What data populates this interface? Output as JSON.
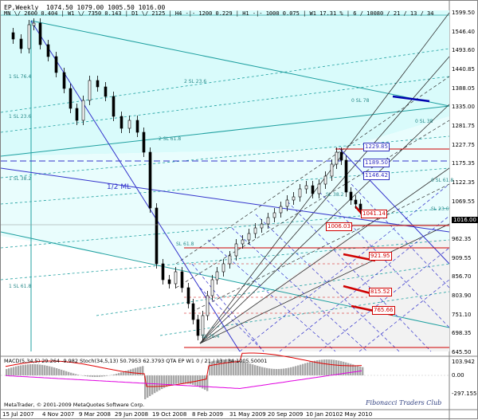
{
  "header": {
    "symbol": "EP,Weekly",
    "ohlc": "1074.50  1079.00  1005.50  1016.00",
    "indicators": "MN \\/ 2600   0.404  |  W1 \\/ 7350   0.143  |  D1 \\/ 2125  |  H4 -|- 1200   0.229  |  H1 -|- 1000   0.075  |  W1   17.31 %  |  6 / 10080 / 21 / 13 / 34"
  },
  "price_axis": {
    "labels": [
      "1599.50",
      "1546.40",
      "1493.60",
      "1440.85",
      "1388.05",
      "1335.00",
      "1281.75",
      "1227.75",
      "1175.35",
      "1122.35",
      "1069.55",
      "1016.00",
      "962.35",
      "909.55",
      "856.70",
      "803.90",
      "751.10",
      "698.35",
      "645.50"
    ],
    "current": "1016.00"
  },
  "price_levels": [
    {
      "label": "1229.85",
      "color": "#3030c0"
    },
    {
      "label": "1189.50",
      "color": "#3030c0"
    },
    {
      "label": "1146.42",
      "color": "#3030c0"
    },
    {
      "label": "1041.14",
      "color": "#d00000"
    },
    {
      "label": "1006.03",
      "color": "#d00000"
    },
    {
      "label": "921.95",
      "color": "#d00000"
    },
    {
      "label": "815.52",
      "color": "#d00000"
    },
    {
      "label": "765.66",
      "color": "#d00000"
    }
  ],
  "annotations": {
    "median_line": "1/2 ML"
  },
  "fan_labels": [
    "1 SL 76.4",
    "1 SL 23.6",
    "1 SL 38.2",
    "1 SL 61.8",
    "2 SL 23.6",
    "2 SL 61.8",
    "0 SL 78",
    "0 SL 38",
    "0 SL 61.8",
    "SL 23.6",
    "SL 38.2",
    "SL 61.8",
    "SL 76.4"
  ],
  "subwindow": {
    "title": "MACD(5,34,5)  29.264  -9.982   Stoch(34,5,13)  50.7953  62.3793   QTA EP W1  0 / 21 / 13 / 34  1005.50001",
    "axis_labels": [
      "103.942",
      "0.00",
      "-297.155"
    ]
  },
  "time_axis": [
    "15 Jul 2007",
    "4 Nov 2007",
    "9 Mar 2008",
    "29 Jun 2008",
    "19 Oct 2008",
    "8 Feb 2009",
    "31 May 2009",
    "20 Sep 2009",
    "10 Jan 2010",
    "2 May 2010"
  ],
  "footer": {
    "copyright": "MetaTrader, © 2001-2009 MetaQuotes Software Corp.",
    "watermark": "Fibonacci Traders Club"
  },
  "colors": {
    "background": "#ffffff",
    "channel_fill": "#d9fbfb",
    "pitchfork_blue": "#3333cc",
    "fib_dash": "#20a0a0",
    "resistance_red": "#d00000",
    "macd_hist": "#a8a8a8",
    "macd_signal": "#e00000",
    "stoch": "#e000e0"
  }
}
